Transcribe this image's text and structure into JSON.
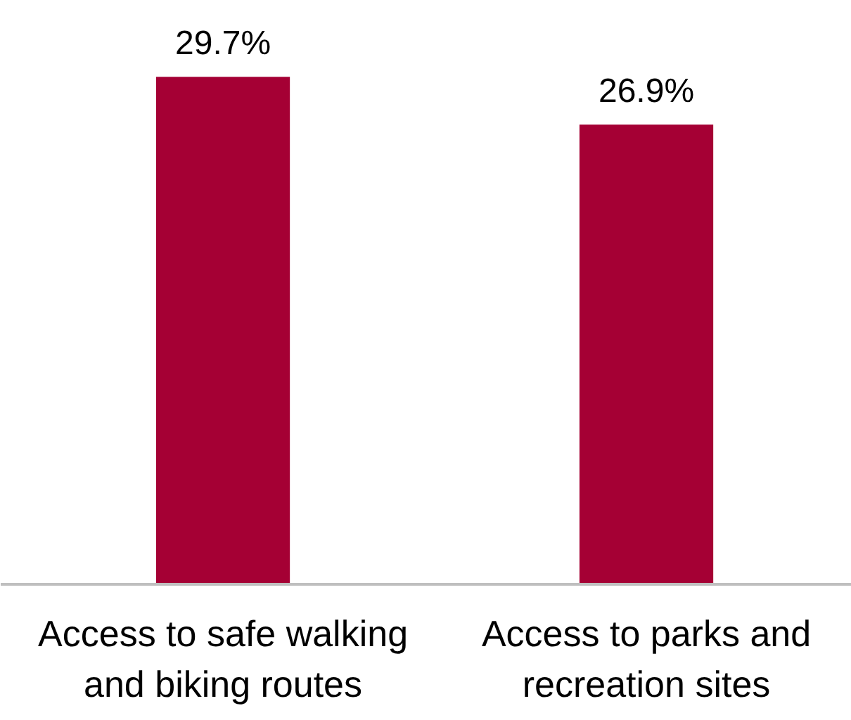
{
  "chart_data": {
    "type": "bar",
    "categories": [
      "Access to safe walking and biking routes",
      "Access to parks and recreation sites"
    ],
    "values": [
      29.7,
      26.9
    ],
    "value_labels": [
      "29.7%",
      "26.9%"
    ],
    "color": "#a50034",
    "grid": false,
    "tick_labels": "x"
  }
}
